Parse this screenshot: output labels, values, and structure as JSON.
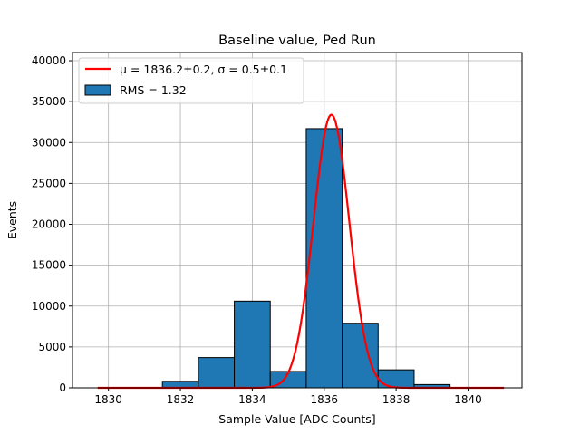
{
  "chart_data": {
    "type": "bar",
    "title": "Baseline value, Ped Run",
    "xlabel": "Sample Value [ADC Counts]",
    "ylabel": "Events",
    "xlim": [
      1829.0,
      1841.5
    ],
    "ylim": [
      0,
      41000
    ],
    "xticks": [
      1830,
      1832,
      1834,
      1836,
      1838,
      1840
    ],
    "yticks": [
      0,
      5000,
      10000,
      15000,
      20000,
      25000,
      30000,
      35000,
      40000
    ],
    "grid": true,
    "legend_position": "top-left",
    "histogram": {
      "name": "RMS = 1.32",
      "color": "#1f77b4",
      "edge_color": "#000000",
      "bin_edges": [
        1829.5,
        1830.5,
        1831.5,
        1832.5,
        1833.5,
        1834.5,
        1835.5,
        1836.5,
        1837.5,
        1838.5,
        1839.5,
        1840.5
      ],
      "counts": [
        0,
        50,
        800,
        3700,
        10600,
        2000,
        31700,
        7900,
        2200,
        400,
        0
      ]
    },
    "fit": {
      "name": "μ = 1836.2±0.2, σ = 0.5±0.1",
      "color": "#ff0000",
      "mu": 1836.2,
      "sigma": 0.5,
      "amplitude": 33400,
      "x_range": [
        1829.7,
        1841.0
      ]
    }
  }
}
